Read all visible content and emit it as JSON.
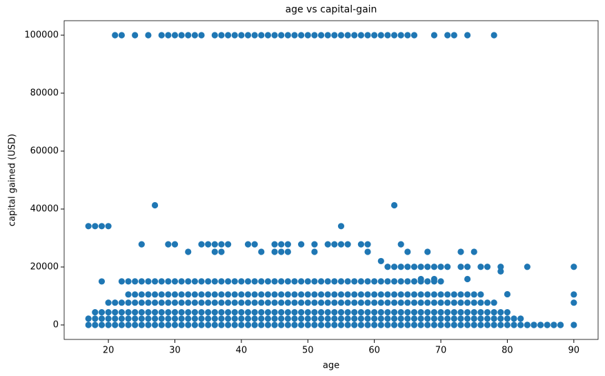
{
  "chart_data": {
    "type": "scatter",
    "title": "age vs capital-gain",
    "x_label": "age",
    "y_label": "capital gained (USD)",
    "xlim": [
      13.35,
      93.65
    ],
    "ylim": [
      -5000,
      105000
    ],
    "xticks": [
      20,
      30,
      40,
      50,
      60,
      70,
      80,
      90
    ],
    "yticks": [
      0,
      20000,
      40000,
      60000,
      80000,
      100000
    ],
    "series": [
      {
        "color": "#1f77b4",
        "x": [
          17,
          18,
          19,
          20,
          21,
          22,
          23,
          24,
          25,
          26,
          27,
          28,
          29,
          30,
          31,
          32,
          33,
          34,
          35,
          36,
          37,
          38,
          39,
          40,
          41,
          42,
          43,
          44,
          45,
          46,
          47,
          48,
          49,
          50,
          51,
          52,
          53,
          54,
          55,
          56,
          57,
          58,
          59,
          60,
          61,
          62,
          63,
          64,
          65,
          66,
          67,
          68,
          69,
          70,
          71,
          72,
          73,
          74,
          75,
          76,
          77,
          78,
          79,
          80,
          81,
          82,
          83,
          84,
          85,
          86,
          87,
          88,
          90
        ],
        "values": [
          0,
          0,
          0,
          0,
          0,
          0,
          0,
          0,
          0,
          0,
          0,
          0,
          0,
          0,
          0,
          0,
          0,
          0,
          0,
          0,
          0,
          0,
          0,
          0,
          0,
          0,
          0,
          0,
          0,
          0,
          0,
          0,
          0,
          0,
          0,
          0,
          0,
          0,
          0,
          0,
          0,
          0,
          0,
          0,
          0,
          0,
          0,
          0,
          0,
          0,
          0,
          0,
          0,
          0,
          0,
          0,
          0,
          0,
          0,
          0,
          0,
          0,
          0,
          0,
          0,
          0,
          0,
          0,
          0,
          0,
          0,
          0,
          0
        ]
      },
      {
        "color": "#1f77b4",
        "x": [
          17,
          18,
          19,
          20,
          21,
          22,
          23,
          24,
          25,
          26,
          27,
          28,
          29,
          30,
          31,
          32,
          33,
          34,
          35,
          36,
          37,
          38,
          39,
          40,
          41,
          42,
          43,
          44,
          45,
          46,
          47,
          48,
          49,
          50,
          51,
          52,
          53,
          54,
          55,
          56,
          57,
          58,
          59,
          60,
          61,
          62,
          63,
          64,
          65,
          66,
          67,
          68,
          69,
          70,
          71,
          72,
          73,
          74,
          75,
          76,
          77,
          78,
          79,
          80,
          81,
          82
        ],
        "values": [
          2174,
          2174,
          2174,
          2174,
          2174,
          2174,
          2174,
          2174,
          2174,
          2174,
          2174,
          2174,
          2174,
          2174,
          2174,
          2174,
          2174,
          2174,
          2174,
          2174,
          2174,
          2174,
          2174,
          2174,
          2174,
          2174,
          2174,
          2174,
          2174,
          2174,
          2174,
          2174,
          2174,
          2174,
          2174,
          2174,
          2174,
          2174,
          2174,
          2174,
          2174,
          2174,
          2174,
          2174,
          2174,
          2174,
          2174,
          2174,
          2174,
          2174,
          2174,
          2174,
          2174,
          2174,
          2174,
          2174,
          2174,
          2174,
          2174,
          2174,
          2174,
          2174,
          2174,
          2174,
          2174,
          2174
        ]
      },
      {
        "color": "#1f77b4",
        "x": [
          18,
          19,
          20,
          21,
          22,
          23,
          24,
          25,
          26,
          27,
          28,
          29,
          30,
          31,
          32,
          33,
          34,
          35,
          36,
          37,
          38,
          39,
          40,
          41,
          42,
          43,
          44,
          45,
          46,
          47,
          48,
          49,
          50,
          51,
          52,
          53,
          54,
          55,
          56,
          57,
          58,
          59,
          60,
          61,
          62,
          63,
          64,
          65,
          66,
          67,
          68,
          69,
          70,
          71,
          72,
          73,
          74,
          75,
          76,
          77,
          78,
          79,
          80
        ],
        "values": [
          4386,
          4386,
          4386,
          4386,
          4386,
          4386,
          4386,
          4386,
          4386,
          4386,
          4386,
          4386,
          4386,
          4386,
          4386,
          4386,
          4386,
          4386,
          4386,
          4386,
          4386,
          4386,
          4386,
          4386,
          4386,
          4386,
          4386,
          4386,
          4386,
          4386,
          4386,
          4386,
          4386,
          4386,
          4386,
          4386,
          4386,
          4386,
          4386,
          4386,
          4386,
          4386,
          4386,
          4386,
          4386,
          4386,
          4386,
          4386,
          4386,
          4386,
          4386,
          4386,
          4386,
          4386,
          4386,
          4386,
          4386,
          4386,
          4386,
          4386,
          4386,
          4386,
          4386
        ]
      },
      {
        "color": "#1f77b4",
        "x": [
          20,
          21,
          22,
          23,
          24,
          25,
          26,
          27,
          28,
          29,
          30,
          31,
          32,
          33,
          34,
          35,
          36,
          37,
          38,
          39,
          40,
          41,
          42,
          43,
          44,
          45,
          46,
          47,
          48,
          49,
          50,
          51,
          52,
          53,
          54,
          55,
          56,
          57,
          58,
          59,
          60,
          61,
          62,
          63,
          64,
          65,
          66,
          67,
          68,
          69,
          70,
          71,
          72,
          73,
          74,
          75,
          76,
          77,
          78
        ],
        "values": [
          7688,
          7688,
          7688,
          7688,
          7688,
          7688,
          7688,
          7688,
          7688,
          7688,
          7688,
          7688,
          7688,
          7688,
          7688,
          7688,
          7688,
          7688,
          7688,
          7688,
          7688,
          7688,
          7688,
          7688,
          7688,
          7688,
          7688,
          7688,
          7688,
          7688,
          7688,
          7688,
          7688,
          7688,
          7688,
          7688,
          7688,
          7688,
          7688,
          7688,
          7688,
          7688,
          7688,
          7688,
          7688,
          7688,
          7688,
          7688,
          7688,
          7688,
          7688,
          7688,
          7688,
          7688,
          7688,
          7688,
          7688,
          7688,
          7688
        ]
      },
      {
        "color": "#1f77b4",
        "x": [
          23,
          24,
          25,
          26,
          27,
          28,
          29,
          30,
          31,
          32,
          33,
          34,
          35,
          36,
          37,
          38,
          39,
          40,
          41,
          42,
          43,
          44,
          45,
          46,
          47,
          48,
          49,
          50,
          51,
          52,
          53,
          54,
          55,
          56,
          57,
          58,
          59,
          60,
          61,
          62,
          63,
          64,
          65,
          66,
          67,
          68,
          69,
          70,
          71,
          72,
          73,
          74,
          75,
          76
        ],
        "values": [
          10520,
          10520,
          10520,
          10520,
          10520,
          10520,
          10520,
          10520,
          10520,
          10520,
          10520,
          10520,
          10520,
          10520,
          10520,
          10520,
          10520,
          10520,
          10520,
          10520,
          10520,
          10520,
          10520,
          10520,
          10520,
          10520,
          10520,
          10520,
          10520,
          10520,
          10520,
          10520,
          10520,
          10520,
          10520,
          10520,
          10520,
          10520,
          10520,
          10520,
          10520,
          10520,
          10520,
          10520,
          10520,
          10520,
          10520,
          10520,
          10520,
          10520,
          10520,
          10520,
          10520,
          10520
        ]
      },
      {
        "color": "#1f77b4",
        "x": [
          22,
          23,
          24,
          25,
          26,
          27,
          28,
          29,
          30,
          31,
          32,
          33,
          34,
          35,
          36,
          37,
          38,
          39,
          40,
          41,
          42,
          43,
          44,
          45,
          46,
          47,
          48,
          49,
          50,
          51,
          52,
          53,
          54,
          55,
          56,
          57,
          58,
          59,
          60,
          61,
          62,
          63,
          64,
          65,
          66,
          67,
          68,
          69,
          70
        ],
        "values": [
          15024,
          15024,
          15024,
          15024,
          15024,
          15024,
          15024,
          15024,
          15024,
          15024,
          15024,
          15024,
          15024,
          15024,
          15024,
          15024,
          15024,
          15024,
          15024,
          15024,
          15024,
          15024,
          15024,
          15024,
          15024,
          15024,
          15024,
          15024,
          15024,
          15024,
          15024,
          15024,
          15024,
          15024,
          15024,
          15024,
          15024,
          15024,
          15024,
          15024,
          15024,
          15024,
          15024,
          15024,
          15024,
          15024,
          15024,
          15024,
          15024
        ]
      },
      {
        "color": "#1f77b4",
        "x": [
          21,
          22,
          24,
          26,
          28,
          29,
          30,
          31,
          32,
          33,
          34,
          36,
          37,
          38,
          39,
          40,
          41,
          42,
          43,
          44,
          45,
          46,
          47,
          48,
          49,
          50,
          51,
          52,
          53,
          54,
          55,
          56,
          57,
          58,
          59,
          60,
          61,
          62,
          63,
          64,
          65,
          66,
          69,
          71,
          72,
          74,
          78
        ],
        "values": [
          99999,
          99999,
          99999,
          99999,
          99999,
          99999,
          99999,
          99999,
          99999,
          99999,
          99999,
          99999,
          99999,
          99999,
          99999,
          99999,
          99999,
          99999,
          99999,
          99999,
          99999,
          99999,
          99999,
          99999,
          99999,
          99999,
          99999,
          99999,
          99999,
          99999,
          99999,
          99999,
          99999,
          99999,
          99999,
          99999,
          99999,
          99999,
          99999,
          99999,
          99999,
          99999,
          99999,
          99999,
          99999,
          99999,
          99999
        ]
      },
      {
        "color": "#1f77b4",
        "x": [
          17,
          18,
          19,
          20,
          55
        ],
        "values": [
          34095,
          34095,
          34095,
          34095,
          34095
        ]
      },
      {
        "color": "#1f77b4",
        "x": [
          27,
          63
        ],
        "values": [
          41310,
          41310
        ]
      },
      {
        "color": "#1f77b4",
        "x": [
          25,
          29,
          30,
          34,
          35,
          36,
          37,
          38,
          41,
          42,
          45,
          46,
          47,
          49,
          51,
          53,
          54,
          55,
          56,
          58,
          59,
          64
        ],
        "values": [
          27828,
          27828,
          27828,
          27828,
          27828,
          27828,
          27828,
          27828,
          27828,
          27828,
          27828,
          27828,
          27828,
          27828,
          27828,
          27828,
          27828,
          27828,
          27828,
          27828,
          27828,
          27828
        ]
      },
      {
        "color": "#1f77b4",
        "x": [
          32,
          36,
          37,
          43,
          45,
          46,
          47,
          51,
          59,
          65,
          68,
          73,
          75
        ],
        "values": [
          25236,
          25236,
          25236,
          25236,
          25236,
          25236,
          25236,
          25236,
          25236,
          25236,
          25236,
          25236,
          25236
        ]
      },
      {
        "color": "#1f77b4",
        "x": [
          62,
          63,
          64,
          65,
          66,
          67,
          68,
          69,
          70,
          71,
          73,
          74,
          76,
          77,
          79,
          83,
          90
        ],
        "values": [
          20051,
          20051,
          20051,
          20051,
          20051,
          20051,
          20051,
          20051,
          20051,
          20051,
          20051,
          20051,
          20051,
          20051,
          20051,
          20051,
          20051
        ]
      },
      {
        "color": "#1f77b4",
        "x": [
          61,
          79,
          74,
          67,
          19,
          69,
          80,
          90,
          90,
          83,
          84,
          85,
          86,
          87,
          88
        ],
        "values": [
          22040,
          18481,
          15831,
          15831,
          15020,
          15831,
          10605,
          10520,
          7688,
          0,
          0,
          0,
          0,
          0,
          0
        ]
      }
    ]
  }
}
